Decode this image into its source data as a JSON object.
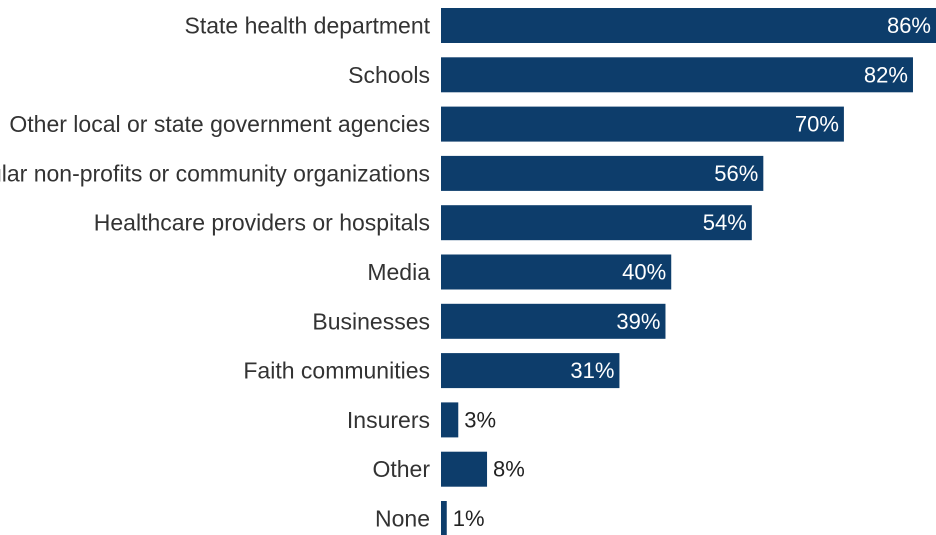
{
  "chart_data": {
    "type": "bar",
    "orientation": "horizontal",
    "categories": [
      "State health department",
      "Schools",
      "Other local or state government agencies",
      "Secular non-profits or community organizations",
      "Healthcare providers or hospitals",
      "Media",
      "Businesses",
      "Faith communities",
      "Insurers",
      "Other",
      "None"
    ],
    "values": [
      86,
      82,
      70,
      56,
      54,
      40,
      39,
      31,
      3,
      8,
      1
    ],
    "value_labels": [
      "86%",
      "82%",
      "70%",
      "56%",
      "54%",
      "40%",
      "39%",
      "31%",
      "3%",
      "8%",
      "1%"
    ],
    "unit": "%",
    "title": "",
    "xlabel": "",
    "ylabel": "",
    "xlim": [
      0,
      86
    ],
    "grid": false,
    "legend": "none",
    "bar_color": "#0d3d6b",
    "label_inside_color": "#ffffff",
    "label_outside_color": "#222222"
  }
}
